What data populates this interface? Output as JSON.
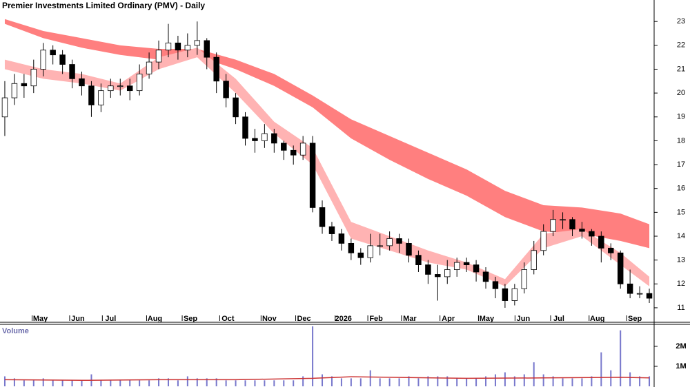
{
  "chart_data": [
    {
      "type": "candlestick",
      "title": "Premier Investments Limited Ordinary (PMV) - Daily",
      "color_up": "#ffffff",
      "color_down": "#000000",
      "open": [
        19.0,
        19.8,
        20.4,
        20.3,
        21.0,
        21.8,
        21.6,
        21.2,
        20.6,
        20.3,
        19.5,
        20.1,
        20.3,
        20.3,
        20.1,
        20.8,
        21.3,
        21.8,
        22.1,
        21.8,
        22.0,
        22.2,
        21.5,
        20.5,
        19.8,
        19.0,
        18.1,
        18.0,
        18.3,
        17.9,
        17.6,
        17.4,
        17.9,
        15.2,
        14.4,
        14.1,
        13.7,
        13.3,
        13.1,
        13.6,
        13.6,
        13.9,
        13.7,
        13.2,
        12.8,
        12.4,
        12.3,
        12.6,
        12.9,
        12.8,
        12.5,
        12.1,
        11.8,
        11.3,
        11.8,
        12.6,
        13.4,
        14.2,
        14.7,
        14.7,
        14.3,
        14.2,
        14.0,
        13.5,
        13.3,
        12.0,
        11.6,
        11.6
      ],
      "high": [
        20.5,
        20.8,
        20.8,
        21.4,
        22.1,
        22.0,
        21.8,
        21.4,
        20.9,
        20.5,
        20.4,
        20.6,
        20.6,
        20.6,
        21.2,
        21.7,
        22.2,
        22.9,
        22.4,
        22.5,
        23.0,
        22.3,
        21.7,
        20.8,
        20.0,
        19.2,
        18.5,
        18.7,
        18.5,
        18.0,
        17.8,
        18.2,
        18.2,
        15.5,
        14.6,
        14.3,
        13.9,
        13.5,
        14.1,
        14.1,
        14.2,
        14.1,
        13.9,
        13.4,
        13.0,
        12.8,
        13.0,
        13.1,
        13.1,
        13.0,
        12.7,
        12.3,
        12.0,
        12.0,
        12.9,
        13.8,
        14.5,
        15.1,
        15.0,
        14.8,
        14.6,
        14.3,
        14.2,
        13.7,
        13.4,
        12.6,
        11.9,
        11.8
      ],
      "low": [
        18.2,
        19.5,
        19.8,
        20.0,
        20.7,
        21.2,
        20.8,
        20.2,
        19.9,
        19.0,
        19.2,
        19.8,
        19.9,
        19.7,
        19.9,
        20.6,
        21.0,
        21.5,
        21.4,
        21.5,
        21.6,
        21.0,
        20.0,
        19.4,
        18.7,
        17.8,
        17.5,
        17.7,
        17.5,
        17.2,
        17.0,
        17.2,
        15.0,
        14.1,
        13.8,
        13.4,
        13.0,
        12.8,
        12.9,
        13.2,
        13.4,
        13.3,
        12.9,
        12.5,
        12.0,
        11.3,
        12.0,
        12.3,
        12.5,
        12.1,
        11.8,
        11.4,
        11.0,
        11.1,
        11.6,
        12.4,
        13.2,
        14.0,
        14.3,
        14.0,
        13.9,
        13.6,
        12.9,
        13.0,
        11.8,
        11.4,
        11.4,
        11.2
      ],
      "close": [
        19.8,
        20.4,
        20.3,
        21.0,
        21.8,
        21.6,
        21.2,
        20.6,
        20.3,
        19.5,
        20.1,
        20.3,
        20.3,
        20.1,
        20.8,
        21.3,
        21.8,
        22.1,
        21.8,
        22.0,
        22.2,
        21.5,
        20.5,
        19.8,
        19.0,
        18.1,
        18.0,
        18.3,
        17.9,
        17.6,
        17.4,
        17.9,
        15.2,
        14.4,
        14.1,
        13.7,
        13.3,
        13.1,
        13.6,
        13.6,
        13.9,
        13.7,
        13.2,
        12.8,
        12.4,
        12.3,
        12.6,
        12.9,
        12.8,
        12.5,
        12.1,
        11.8,
        11.3,
        11.8,
        12.6,
        13.4,
        14.2,
        14.7,
        14.7,
        14.3,
        14.2,
        14.0,
        13.5,
        13.3,
        12.0,
        11.6,
        11.6,
        11.4
      ],
      "slow_band": {
        "color": "#ff7f7f",
        "x": [
          0,
          4,
          8,
          12,
          16,
          20,
          24,
          28,
          32,
          36,
          40,
          44,
          48,
          52,
          56,
          60,
          64,
          67
        ],
        "upper": [
          23.1,
          22.6,
          22.3,
          22.0,
          21.85,
          21.85,
          21.4,
          20.8,
          19.9,
          18.9,
          18.2,
          17.5,
          16.8,
          15.9,
          15.3,
          15.2,
          14.95,
          14.5
        ],
        "lower": [
          22.9,
          22.3,
          21.9,
          21.6,
          21.4,
          21.55,
          21.0,
          20.3,
          19.4,
          18.1,
          17.2,
          16.4,
          15.7,
          14.8,
          14.2,
          14.1,
          13.8,
          13.5
        ]
      },
      "fast_band": {
        "color": "#ffb3b3",
        "x": [
          0,
          4,
          8,
          12,
          16,
          20,
          24,
          28,
          32,
          36,
          40,
          44,
          48,
          52,
          56,
          60,
          64,
          67
        ],
        "upper": [
          21.4,
          21.0,
          20.8,
          20.4,
          21.5,
          21.9,
          20.6,
          18.8,
          17.7,
          14.6,
          14.0,
          13.4,
          12.9,
          12.2,
          14.1,
          14.3,
          13.3,
          12.3
        ],
        "lower": [
          21.0,
          20.6,
          20.4,
          20.1,
          21.0,
          21.5,
          20.0,
          18.3,
          17.0,
          13.9,
          13.4,
          12.9,
          12.6,
          11.9,
          13.5,
          14.0,
          12.8,
          11.9
        ]
      },
      "xlim": [
        0,
        68
      ],
      "xticks": [
        {
          "value": 4.2,
          "label": "May"
        },
        {
          "value": 8.1,
          "label": "Jun"
        },
        {
          "value": 11.5,
          "label": "Jul"
        },
        {
          "value": 16.1,
          "label": "Aug"
        },
        {
          "value": 19.8,
          "label": "Sep"
        },
        {
          "value": 23.7,
          "label": "Oct"
        },
        {
          "value": 28.0,
          "label": "Nov"
        },
        {
          "value": 31.6,
          "label": "Dec"
        },
        {
          "value": 35.7,
          "label": "2026"
        },
        {
          "value": 39.1,
          "label": "Feb"
        },
        {
          "value": 42.6,
          "label": "Mar"
        },
        {
          "value": 46.6,
          "label": "Apr"
        },
        {
          "value": 50.6,
          "label": "May"
        },
        {
          "value": 54.4,
          "label": "Jun"
        },
        {
          "value": 58.1,
          "label": "Jul"
        },
        {
          "value": 62.1,
          "label": "Aug"
        },
        {
          "value": 66.0,
          "label": "Sep"
        }
      ],
      "ylim": [
        10.45,
        23.9
      ],
      "yticks": [
        11,
        12,
        13,
        14,
        15,
        16,
        17,
        18,
        19,
        20,
        21,
        22,
        23
      ]
    },
    {
      "type": "bar",
      "title": "Volume",
      "color": "#7777cc",
      "values": [
        500000,
        400000,
        300000,
        300000,
        400000,
        300000,
        300000,
        300000,
        300000,
        600000,
        300000,
        300000,
        300000,
        300000,
        300000,
        300000,
        400000,
        400000,
        300000,
        500000,
        400000,
        400000,
        400000,
        300000,
        300000,
        300000,
        300000,
        300000,
        300000,
        300000,
        300000,
        500000,
        3000000,
        600000,
        500000,
        400000,
        400000,
        400000,
        800000,
        400000,
        400000,
        400000,
        500000,
        400000,
        500000,
        500000,
        500000,
        400000,
        400000,
        400000,
        500000,
        600000,
        700000,
        500000,
        600000,
        1200000,
        600000,
        500000,
        400000,
        400000,
        400000,
        500000,
        1700000,
        800000,
        2800000,
        700000,
        500000,
        500000
      ],
      "average": {
        "color": "#cc3333",
        "x": [
          0,
          8,
          16,
          24,
          32,
          36,
          40,
          48,
          56,
          64,
          67
        ],
        "values": [
          330000,
          300000,
          330000,
          330000,
          400000,
          480000,
          450000,
          400000,
          420000,
          450000,
          420000
        ]
      },
      "xlim": [
        0,
        68
      ],
      "ylim": [
        0,
        3100000
      ],
      "yticks": [
        {
          "value": 1000000,
          "label": "1M"
        },
        {
          "value": 2000000,
          "label": "2M"
        }
      ]
    }
  ]
}
